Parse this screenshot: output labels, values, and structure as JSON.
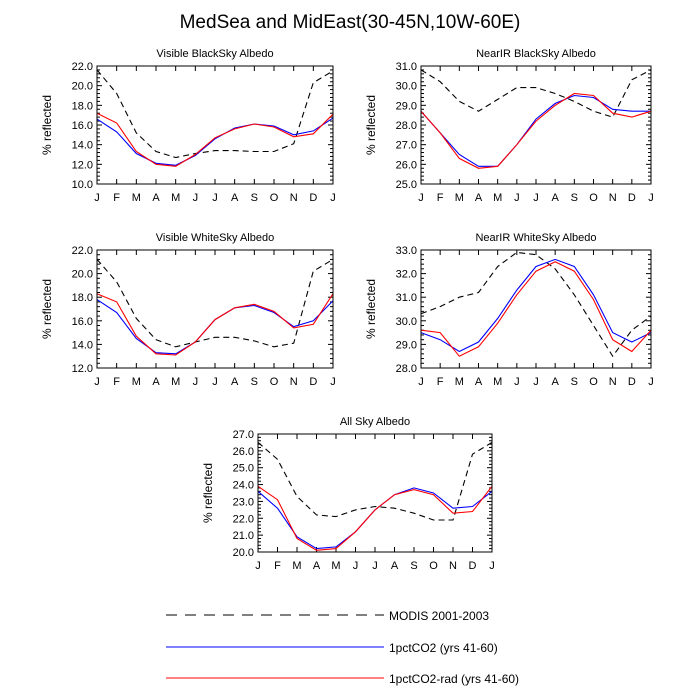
{
  "figure_title": "MedSea and MidEast(30-45N,10W-60E)",
  "ylabel": "% reflected",
  "months": [
    "J",
    "F",
    "M",
    "A",
    "M",
    "J",
    "J",
    "A",
    "S",
    "O",
    "N",
    "D",
    "J"
  ],
  "legend": [
    {
      "label": "MODIS 2001-2003",
      "color": "#000000",
      "dash": true
    },
    {
      "label": "1pctCO2 (yrs 41-60)",
      "color": "#0000ff",
      "dash": false
    },
    {
      "label": "1pctCO2-rad (yrs 41-60)",
      "color": "#ff0000",
      "dash": false
    }
  ],
  "chart_data": [
    {
      "type": "line",
      "title": "Visible BlackSky Albedo",
      "ylabel": "% reflected",
      "x": [
        "J",
        "F",
        "M",
        "A",
        "M",
        "J",
        "J",
        "A",
        "S",
        "O",
        "N",
        "D",
        "J"
      ],
      "ylim": [
        10.0,
        22.0
      ],
      "yticks": [
        "10.0",
        "12.0",
        "14.0",
        "16.0",
        "18.0",
        "20.0",
        "22.0"
      ],
      "series": [
        {
          "name": "MODIS 2001-2003",
          "values": [
            21.6,
            19.2,
            15.2,
            13.3,
            12.7,
            13.1,
            13.4,
            13.4,
            13.3,
            13.3,
            14.1,
            20.3,
            21.5
          ]
        },
        {
          "name": "1pctCO2 (yrs 41-60)",
          "values": [
            16.6,
            15.3,
            13.1,
            12.1,
            11.9,
            12.9,
            14.6,
            15.7,
            16.1,
            15.9,
            15.0,
            15.4,
            16.7
          ]
        },
        {
          "name": "1pctCO2-rad (yrs 41-60)",
          "values": [
            17.2,
            16.2,
            13.3,
            12.0,
            11.8,
            13.0,
            14.7,
            15.6,
            16.1,
            15.8,
            14.8,
            15.1,
            17.1
          ]
        }
      ]
    },
    {
      "type": "line",
      "title": "NearIR BlackSky Albedo",
      "ylabel": "% reflected",
      "x": [
        "J",
        "F",
        "M",
        "A",
        "M",
        "J",
        "J",
        "A",
        "S",
        "O",
        "N",
        "D",
        "J"
      ],
      "ylim": [
        25.0,
        31.0
      ],
      "yticks": [
        "25.0",
        "26.0",
        "27.0",
        "28.0",
        "29.0",
        "30.0",
        "31.0"
      ],
      "series": [
        {
          "name": "MODIS 2001-2003",
          "values": [
            30.8,
            30.2,
            29.2,
            28.7,
            29.3,
            29.9,
            29.9,
            29.6,
            29.2,
            28.7,
            28.4,
            30.3,
            30.8
          ]
        },
        {
          "name": "1pctCO2 (yrs 41-60)",
          "values": [
            28.7,
            27.6,
            26.5,
            25.9,
            25.9,
            27.0,
            28.3,
            29.1,
            29.5,
            29.4,
            28.8,
            28.7,
            28.7
          ]
        },
        {
          "name": "1pctCO2-rad (yrs 41-60)",
          "values": [
            28.7,
            27.6,
            26.3,
            25.8,
            25.9,
            27.0,
            28.2,
            29.0,
            29.6,
            29.5,
            28.6,
            28.4,
            28.7
          ]
        }
      ]
    },
    {
      "type": "line",
      "title": "Visible WhiteSky Albedo",
      "ylabel": "% reflected",
      "x": [
        "J",
        "F",
        "M",
        "A",
        "M",
        "J",
        "J",
        "A",
        "S",
        "O",
        "N",
        "D",
        "J"
      ],
      "ylim": [
        12.0,
        22.0
      ],
      "yticks": [
        "12.0",
        "14.0",
        "16.0",
        "18.0",
        "20.0",
        "22.0"
      ],
      "series": [
        {
          "name": "MODIS 2001-2003",
          "values": [
            21.2,
            19.3,
            16.2,
            14.4,
            13.8,
            14.2,
            14.6,
            14.6,
            14.3,
            13.8,
            14.1,
            20.2,
            21.2
          ]
        },
        {
          "name": "1pctCO2 (yrs 41-60)",
          "values": [
            17.8,
            16.7,
            14.5,
            13.3,
            13.2,
            14.2,
            16.1,
            17.1,
            17.3,
            16.7,
            15.5,
            16.0,
            17.7
          ]
        },
        {
          "name": "1pctCO2-rad (yrs 41-60)",
          "values": [
            18.3,
            17.6,
            14.7,
            13.2,
            13.1,
            14.2,
            16.1,
            17.1,
            17.4,
            16.8,
            15.4,
            15.7,
            18.3
          ]
        }
      ]
    },
    {
      "type": "line",
      "title": "NearIR WhiteSky Albedo",
      "ylabel": "% reflected",
      "x": [
        "J",
        "F",
        "M",
        "A",
        "M",
        "J",
        "J",
        "A",
        "S",
        "O",
        "N",
        "D",
        "J"
      ],
      "ylim": [
        28.0,
        33.0
      ],
      "yticks": [
        "28.0",
        "29.0",
        "30.0",
        "31.0",
        "32.0",
        "33.0"
      ],
      "series": [
        {
          "name": "MODIS 2001-2003",
          "values": [
            30.3,
            30.6,
            31.0,
            31.2,
            32.3,
            32.9,
            32.8,
            32.2,
            31.1,
            29.8,
            28.5,
            29.6,
            30.2
          ]
        },
        {
          "name": "1pctCO2 (yrs 41-60)",
          "values": [
            29.5,
            29.2,
            28.7,
            29.1,
            30.1,
            31.3,
            32.3,
            32.6,
            32.3,
            31.1,
            29.5,
            29.1,
            29.5
          ]
        },
        {
          "name": "1pctCO2-rad (yrs 41-60)",
          "values": [
            29.6,
            29.5,
            28.5,
            28.9,
            29.9,
            31.1,
            32.1,
            32.5,
            32.1,
            30.9,
            29.2,
            28.7,
            29.6
          ]
        }
      ]
    },
    {
      "type": "line",
      "title": "All Sky Albedo",
      "ylabel": "% reflected",
      "x": [
        "J",
        "F",
        "M",
        "A",
        "M",
        "J",
        "J",
        "A",
        "S",
        "O",
        "N",
        "D",
        "J"
      ],
      "ylim": [
        20.0,
        27.0
      ],
      "yticks": [
        "20.0",
        "21.0",
        "22.0",
        "23.0",
        "24.0",
        "25.0",
        "26.0",
        "27.0"
      ],
      "series": [
        {
          "name": "MODIS 2001-2003",
          "values": [
            26.5,
            25.5,
            23.3,
            22.2,
            22.1,
            22.5,
            22.7,
            22.6,
            22.3,
            21.9,
            21.9,
            25.8,
            26.5
          ]
        },
        {
          "name": "1pctCO2 (yrs 41-60)",
          "values": [
            23.6,
            22.6,
            20.9,
            20.2,
            20.3,
            21.2,
            22.5,
            23.4,
            23.8,
            23.5,
            22.6,
            22.7,
            23.6
          ]
        },
        {
          "name": "1pctCO2-rad (yrs 41-60)",
          "values": [
            23.9,
            23.1,
            20.8,
            20.1,
            20.2,
            21.2,
            22.5,
            23.4,
            23.7,
            23.4,
            22.3,
            22.4,
            23.9
          ]
        }
      ]
    }
  ]
}
